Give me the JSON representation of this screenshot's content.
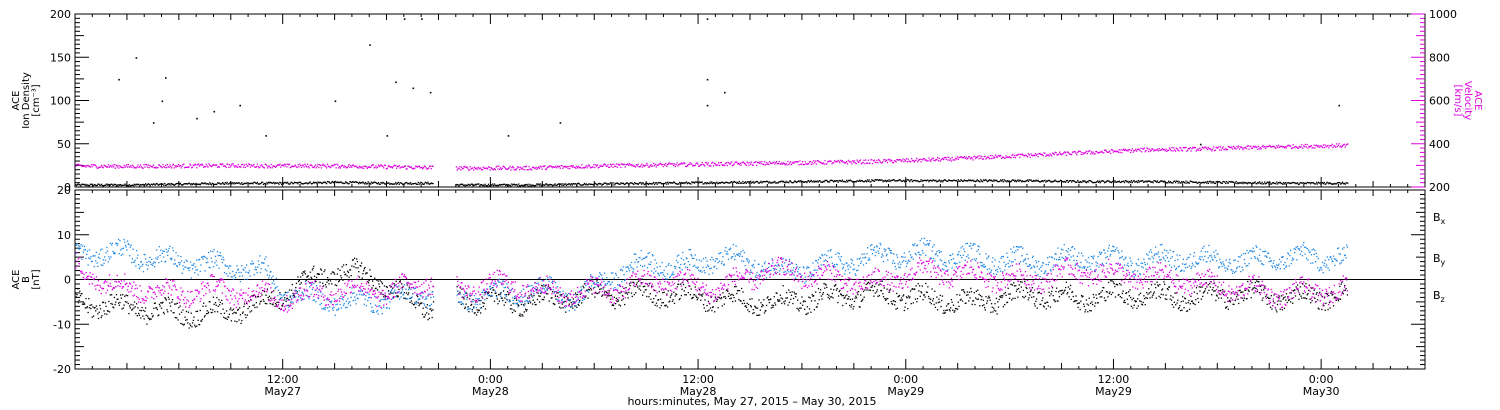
{
  "chart_data": [
    {
      "type": "scatter",
      "panel": "plasma",
      "ylabel": [
        "ACE",
        "Ion Density",
        "[cm⁻³]"
      ],
      "ylabel_right": [
        "ACE",
        "Velocity",
        "[km/s]"
      ],
      "ylim": [
        0,
        200
      ],
      "yticks": [
        "0",
        "50",
        "100",
        "150",
        "200"
      ],
      "ylim_right": [
        200,
        1000
      ],
      "yticks_right": [
        "200",
        "400",
        "600",
        "800",
        "1000"
      ],
      "data_gap_hours": [
        20.7,
        22.0
      ],
      "series": [
        {
          "axis": "left",
          "color": "#000000",
          "points": [
            [
              0,
              3
            ],
            [
              3,
              3
            ],
            [
              6,
              4
            ],
            [
              9,
              5
            ],
            [
              12,
              5
            ],
            [
              15,
              6
            ],
            [
              18,
              5
            ],
            [
              20.5,
              5
            ],
            [
              22.2,
              3
            ],
            [
              26,
              3
            ],
            [
              30,
              4
            ],
            [
              34,
              5
            ],
            [
              38,
              6
            ],
            [
              42,
              7
            ],
            [
              46,
              8
            ],
            [
              50,
              8
            ],
            [
              54,
              8
            ],
            [
              58,
              7
            ],
            [
              62,
              7
            ],
            [
              66,
              6
            ],
            [
              70,
              5
            ],
            [
              73.5,
              5
            ]
          ]
        },
        {
          "axis": "right",
          "color": "#dd00dd",
          "points": [
            [
              0,
              300
            ],
            [
              3,
              298
            ],
            [
              6,
              300
            ],
            [
              9,
              302
            ],
            [
              12,
              300
            ],
            [
              15,
              300
            ],
            [
              18,
              296
            ],
            [
              20.5,
              292
            ],
            [
              22.2,
              290
            ],
            [
              26,
              290
            ],
            [
              30,
              300
            ],
            [
              34,
              305
            ],
            [
              38,
              310
            ],
            [
              42,
              315
            ],
            [
              46,
              320
            ],
            [
              50,
              330
            ],
            [
              54,
              345
            ],
            [
              58,
              360
            ],
            [
              62,
              375
            ],
            [
              66,
              380
            ],
            [
              70,
              390
            ],
            [
              73.5,
              395
            ]
          ]
        }
      ],
      "outliers": [
        [
          2.5,
          125
        ],
        [
          3.5,
          150
        ],
        [
          4.5,
          75
        ],
        [
          5,
          100
        ],
        [
          5.2,
          127
        ],
        [
          7,
          80
        ],
        [
          8,
          88
        ],
        [
          9.5,
          95
        ],
        [
          11,
          60
        ],
        [
          15,
          100
        ],
        [
          17,
          165
        ],
        [
          18,
          60
        ],
        [
          18.5,
          122
        ],
        [
          19,
          195
        ],
        [
          19.5,
          115
        ],
        [
          20,
          195
        ],
        [
          20.5,
          110
        ],
        [
          25,
          60
        ],
        [
          28,
          75
        ],
        [
          36.5,
          195
        ],
        [
          36.5,
          125
        ],
        [
          36.5,
          95
        ],
        [
          37.5,
          110
        ],
        [
          65,
          50
        ],
        [
          73,
          95
        ]
      ]
    },
    {
      "type": "scatter",
      "panel": "magnetic field",
      "ylabel": [
        "ACE",
        "B",
        "[nT]"
      ],
      "ylim": [
        -20,
        20
      ],
      "yticks": [
        "-20",
        "-10",
        "0",
        "10",
        "20"
      ],
      "series": [
        {
          "name": "Bx",
          "color": "#000000",
          "points": [
            [
              0,
              -5
            ],
            [
              3,
              -6
            ],
            [
              5,
              -7
            ],
            [
              7,
              -7.5
            ],
            [
              9,
              -7
            ],
            [
              11,
              -5
            ],
            [
              13,
              -1
            ],
            [
              15,
              2
            ],
            [
              17,
              1
            ],
            [
              19,
              -4
            ],
            [
              20.5,
              -6
            ],
            [
              22.2,
              -4
            ],
            [
              25,
              -5
            ],
            [
              28,
              -4
            ],
            [
              31,
              -3
            ],
            [
              34,
              -3
            ],
            [
              37,
              -4
            ],
            [
              40,
              -5
            ],
            [
              43,
              -4
            ],
            [
              46,
              -3
            ],
            [
              49,
              -4
            ],
            [
              52,
              -5
            ],
            [
              55,
              -3
            ],
            [
              58,
              -4
            ],
            [
              61,
              -3
            ],
            [
              64,
              -4
            ],
            [
              67,
              -3
            ],
            [
              70,
              -4
            ],
            [
              73.5,
              -3
            ]
          ]
        },
        {
          "name": "By",
          "color": "#1e88e5",
          "points": [
            [
              0,
              6
            ],
            [
              3,
              6
            ],
            [
              6,
              4
            ],
            [
              9,
              3
            ],
            [
              11,
              2
            ],
            [
              12,
              -3
            ],
            [
              14,
              -4
            ],
            [
              16,
              -5
            ],
            [
              18,
              -4
            ],
            [
              20.5,
              -3
            ],
            [
              22.2,
              -4
            ],
            [
              25,
              -3
            ],
            [
              27,
              -2
            ],
            [
              29,
              -4
            ],
            [
              31,
              1
            ],
            [
              33,
              4
            ],
            [
              35,
              3
            ],
            [
              37,
              5
            ],
            [
              39,
              4
            ],
            [
              41,
              2
            ],
            [
              43,
              3
            ],
            [
              46,
              5
            ],
            [
              49,
              6
            ],
            [
              52,
              5
            ],
            [
              55,
              4
            ],
            [
              58,
              5
            ],
            [
              61,
              4
            ],
            [
              64,
              5
            ],
            [
              67,
              4
            ],
            [
              70,
              5
            ],
            [
              73.5,
              5
            ]
          ]
        },
        {
          "name": "Bz",
          "color": "#dd00dd",
          "points": [
            [
              0,
              3
            ],
            [
              2,
              -1
            ],
            [
              4,
              -2
            ],
            [
              6,
              -3
            ],
            [
              8,
              -2
            ],
            [
              10,
              -3
            ],
            [
              12,
              -4
            ],
            [
              14,
              -3
            ],
            [
              16,
              -2
            ],
            [
              18,
              -3
            ],
            [
              20.5,
              0
            ],
            [
              22.2,
              -2
            ],
            [
              25,
              -1
            ],
            [
              28,
              -3
            ],
            [
              31,
              -2
            ],
            [
              34,
              0
            ],
            [
              37,
              -2
            ],
            [
              40,
              2
            ],
            [
              43,
              1
            ],
            [
              46,
              -1
            ],
            [
              49,
              2
            ],
            [
              52,
              1
            ],
            [
              55,
              0
            ],
            [
              58,
              2
            ],
            [
              61,
              1
            ],
            [
              64,
              0
            ],
            [
              67,
              -2
            ],
            [
              70,
              -3
            ],
            [
              73.5,
              -2
            ]
          ]
        }
      ]
    }
  ],
  "x_axis": {
    "start_hour": 0,
    "end_hour": 78,
    "ticks": [
      {
        "hour": 12,
        "time": "12:00",
        "date": "May27"
      },
      {
        "hour": 24,
        "time": "0:00",
        "date": "May28"
      },
      {
        "hour": 36,
        "time": "12:00",
        "date": "May28"
      },
      {
        "hour": 48,
        "time": "0:00",
        "date": "May29"
      },
      {
        "hour": 60,
        "time": "12:00",
        "date": "May29"
      },
      {
        "hour": 72,
        "time": "0:00",
        "date": "May30"
      }
    ],
    "title": "hours:minutes, May 27, 2015 – May 30, 2015"
  },
  "legend": [
    {
      "label": "B",
      "sub": "x",
      "color": "#000000"
    },
    {
      "label": "B",
      "sub": "y",
      "color": "#1e88e5"
    },
    {
      "label": "B",
      "sub": "z",
      "color": "#dd00dd"
    }
  ],
  "colors": {
    "axis": "#000000",
    "velocity": "#dd00dd",
    "by": "#1e88e5"
  }
}
